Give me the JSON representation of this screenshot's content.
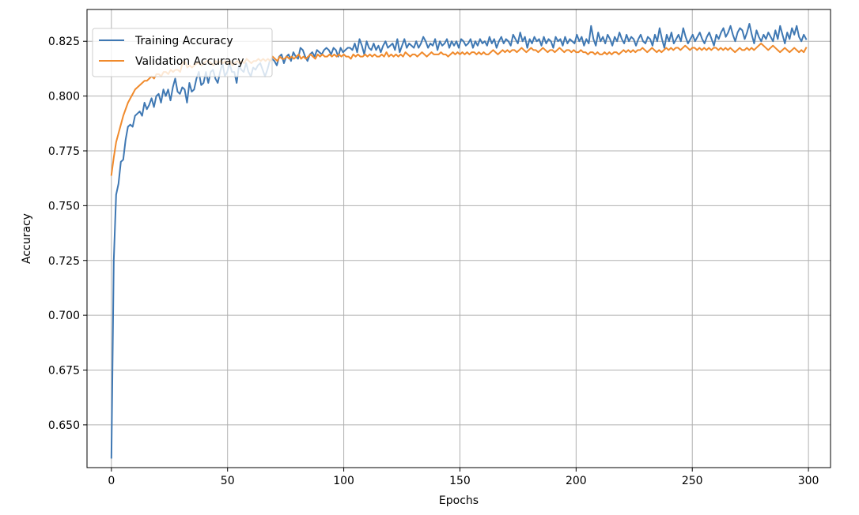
{
  "chart_data": {
    "type": "line",
    "xlabel": "Epochs",
    "ylabel": "Accuracy",
    "xlim": [
      -10.5,
      309.5
    ],
    "ylim": [
      0.6305,
      0.8395
    ],
    "xticks": [
      0,
      50,
      100,
      150,
      200,
      250,
      300
    ],
    "yticks": [
      0.65,
      0.675,
      0.7,
      0.725,
      0.75,
      0.775,
      0.8,
      0.825
    ],
    "ytick_labels": [
      "0.650",
      "0.675",
      "0.700",
      "0.725",
      "0.750",
      "0.775",
      "0.800",
      "0.825"
    ],
    "grid": true,
    "legend_position": "upper-left",
    "x_start": 0,
    "x_end": 299,
    "series": [
      {
        "name": "Training Accuracy",
        "color": "#3f78b3",
        "values": [
          0.635,
          0.725,
          0.755,
          0.76,
          0.77,
          0.771,
          0.78,
          0.786,
          0.787,
          0.786,
          0.791,
          0.792,
          0.793,
          0.791,
          0.797,
          0.794,
          0.796,
          0.799,
          0.795,
          0.8,
          0.801,
          0.797,
          0.803,
          0.8,
          0.803,
          0.798,
          0.804,
          0.808,
          0.802,
          0.801,
          0.804,
          0.803,
          0.797,
          0.806,
          0.802,
          0.803,
          0.808,
          0.811,
          0.805,
          0.806,
          0.811,
          0.806,
          0.811,
          0.812,
          0.808,
          0.806,
          0.811,
          0.815,
          0.809,
          0.811,
          0.815,
          0.811,
          0.811,
          0.806,
          0.814,
          0.812,
          0.811,
          0.815,
          0.811,
          0.809,
          0.813,
          0.812,
          0.814,
          0.815,
          0.812,
          0.809,
          0.812,
          0.816,
          0.817,
          0.816,
          0.814,
          0.818,
          0.819,
          0.815,
          0.818,
          0.819,
          0.816,
          0.82,
          0.818,
          0.817,
          0.822,
          0.821,
          0.818,
          0.816,
          0.819,
          0.82,
          0.818,
          0.821,
          0.82,
          0.819,
          0.821,
          0.822,
          0.821,
          0.819,
          0.822,
          0.821,
          0.818,
          0.822,
          0.82,
          0.821,
          0.822,
          0.822,
          0.821,
          0.824,
          0.82,
          0.826,
          0.823,
          0.819,
          0.825,
          0.822,
          0.821,
          0.824,
          0.821,
          0.823,
          0.82,
          0.823,
          0.825,
          0.822,
          0.823,
          0.824,
          0.821,
          0.826,
          0.82,
          0.823,
          0.826,
          0.822,
          0.824,
          0.823,
          0.822,
          0.825,
          0.822,
          0.824,
          0.827,
          0.825,
          0.822,
          0.824,
          0.823,
          0.826,
          0.821,
          0.825,
          0.823,
          0.824,
          0.826,
          0.822,
          0.825,
          0.823,
          0.825,
          0.822,
          0.826,
          0.825,
          0.823,
          0.824,
          0.826,
          0.822,
          0.825,
          0.823,
          0.826,
          0.824,
          0.825,
          0.823,
          0.827,
          0.824,
          0.826,
          0.822,
          0.825,
          0.827,
          0.824,
          0.826,
          0.825,
          0.823,
          0.828,
          0.826,
          0.824,
          0.829,
          0.825,
          0.827,
          0.822,
          0.826,
          0.824,
          0.827,
          0.825,
          0.826,
          0.823,
          0.827,
          0.824,
          0.826,
          0.825,
          0.822,
          0.827,
          0.825,
          0.826,
          0.823,
          0.827,
          0.824,
          0.826,
          0.825,
          0.824,
          0.828,
          0.825,
          0.827,
          0.823,
          0.826,
          0.824,
          0.832,
          0.826,
          0.823,
          0.829,
          0.825,
          0.827,
          0.824,
          0.828,
          0.826,
          0.823,
          0.827,
          0.825,
          0.829,
          0.826,
          0.824,
          0.828,
          0.825,
          0.827,
          0.826,
          0.823,
          0.826,
          0.828,
          0.825,
          0.824,
          0.827,
          0.826,
          0.823,
          0.828,
          0.825,
          0.831,
          0.826,
          0.822,
          0.828,
          0.825,
          0.829,
          0.824,
          0.826,
          0.828,
          0.825,
          0.831,
          0.827,
          0.824,
          0.826,
          0.828,
          0.825,
          0.827,
          0.829,
          0.826,
          0.824,
          0.827,
          0.829,
          0.826,
          0.823,
          0.828,
          0.826,
          0.829,
          0.831,
          0.827,
          0.829,
          0.832,
          0.828,
          0.825,
          0.829,
          0.831,
          0.83,
          0.826,
          0.829,
          0.833,
          0.828,
          0.824,
          0.83,
          0.827,
          0.825,
          0.828,
          0.826,
          0.829,
          0.827,
          0.825,
          0.83,
          0.826,
          0.832,
          0.828,
          0.824,
          0.829,
          0.826,
          0.831,
          0.828,
          0.832,
          0.827,
          0.825,
          0.828,
          0.826
        ]
      },
      {
        "name": "Validation Accuracy",
        "color": "#f08a2c",
        "values": [
          0.764,
          0.772,
          0.779,
          0.783,
          0.787,
          0.791,
          0.794,
          0.797,
          0.799,
          0.801,
          0.803,
          0.804,
          0.805,
          0.806,
          0.807,
          0.807,
          0.808,
          0.809,
          0.808,
          0.81,
          0.81,
          0.809,
          0.811,
          0.811,
          0.81,
          0.812,
          0.811,
          0.812,
          0.812,
          0.811,
          0.815,
          0.816,
          0.813,
          0.814,
          0.813,
          0.814,
          0.815,
          0.815,
          0.814,
          0.815,
          0.816,
          0.816,
          0.815,
          0.814,
          0.816,
          0.815,
          0.816,
          0.815,
          0.816,
          0.815,
          0.816,
          0.814,
          0.815,
          0.816,
          0.815,
          0.816,
          0.815,
          0.817,
          0.816,
          0.815,
          0.816,
          0.816,
          0.817,
          0.816,
          0.817,
          0.816,
          0.817,
          0.816,
          0.818,
          0.817,
          0.816,
          0.818,
          0.817,
          0.817,
          0.818,
          0.817,
          0.818,
          0.817,
          0.818,
          0.819,
          0.817,
          0.818,
          0.817,
          0.818,
          0.819,
          0.818,
          0.817,
          0.819,
          0.818,
          0.819,
          0.818,
          0.818,
          0.819,
          0.818,
          0.819,
          0.818,
          0.819,
          0.818,
          0.819,
          0.818,
          0.818,
          0.817,
          0.819,
          0.818,
          0.819,
          0.818,
          0.818,
          0.819,
          0.818,
          0.819,
          0.818,
          0.819,
          0.818,
          0.818,
          0.819,
          0.818,
          0.82,
          0.818,
          0.819,
          0.818,
          0.819,
          0.818,
          0.819,
          0.818,
          0.82,
          0.819,
          0.818,
          0.819,
          0.819,
          0.818,
          0.819,
          0.82,
          0.819,
          0.818,
          0.819,
          0.82,
          0.819,
          0.819,
          0.819,
          0.82,
          0.819,
          0.819,
          0.818,
          0.819,
          0.82,
          0.819,
          0.82,
          0.819,
          0.82,
          0.819,
          0.82,
          0.819,
          0.82,
          0.82,
          0.819,
          0.82,
          0.819,
          0.82,
          0.819,
          0.819,
          0.82,
          0.821,
          0.82,
          0.819,
          0.82,
          0.821,
          0.82,
          0.821,
          0.82,
          0.821,
          0.821,
          0.82,
          0.821,
          0.822,
          0.821,
          0.82,
          0.821,
          0.822,
          0.821,
          0.821,
          0.82,
          0.821,
          0.822,
          0.821,
          0.82,
          0.821,
          0.821,
          0.82,
          0.821,
          0.822,
          0.821,
          0.82,
          0.821,
          0.821,
          0.82,
          0.821,
          0.82,
          0.82,
          0.821,
          0.82,
          0.82,
          0.819,
          0.82,
          0.82,
          0.819,
          0.82,
          0.819,
          0.819,
          0.82,
          0.819,
          0.82,
          0.819,
          0.82,
          0.82,
          0.819,
          0.82,
          0.821,
          0.82,
          0.821,
          0.82,
          0.821,
          0.82,
          0.821,
          0.821,
          0.822,
          0.821,
          0.82,
          0.821,
          0.822,
          0.821,
          0.82,
          0.821,
          0.82,
          0.821,
          0.822,
          0.821,
          0.822,
          0.821,
          0.822,
          0.822,
          0.821,
          0.822,
          0.823,
          0.822,
          0.821,
          0.822,
          0.822,
          0.821,
          0.822,
          0.821,
          0.822,
          0.821,
          0.822,
          0.821,
          0.822,
          0.822,
          0.821,
          0.822,
          0.821,
          0.822,
          0.821,
          0.822,
          0.821,
          0.82,
          0.821,
          0.822,
          0.821,
          0.821,
          0.822,
          0.821,
          0.822,
          0.821,
          0.822,
          0.823,
          0.824,
          0.823,
          0.822,
          0.821,
          0.822,
          0.823,
          0.822,
          0.821,
          0.82,
          0.821,
          0.822,
          0.821,
          0.82,
          0.821,
          0.822,
          0.821,
          0.82,
          0.821,
          0.82,
          0.822
        ]
      }
    ]
  }
}
